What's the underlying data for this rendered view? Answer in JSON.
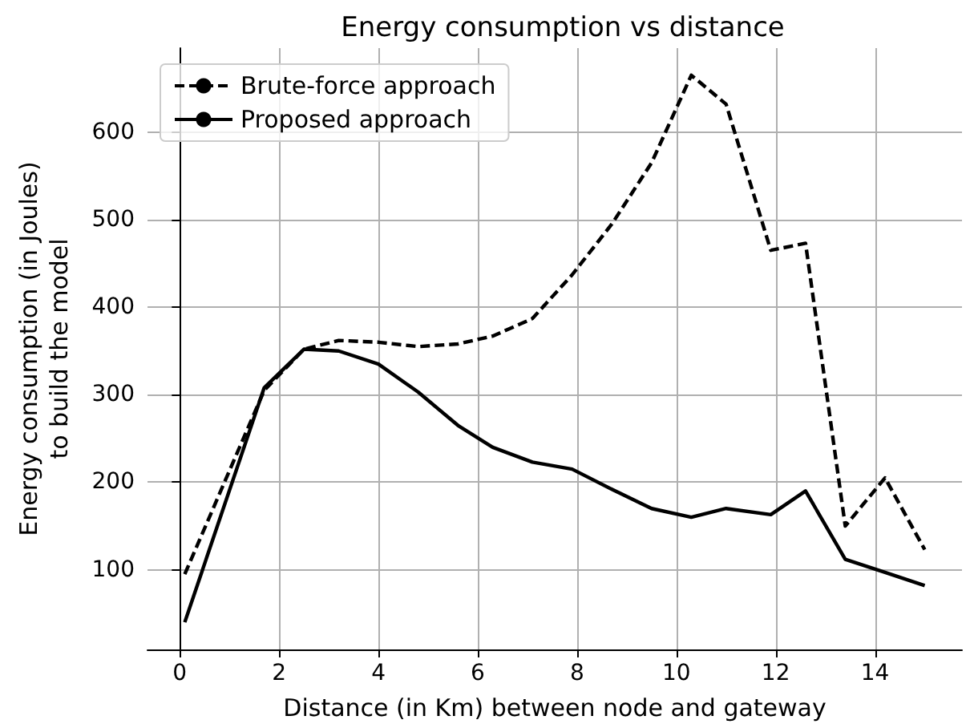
{
  "chart_data": {
    "type": "line",
    "title": "Energy consumption vs distance",
    "xlabel": "Distance (in Km) between node and gateway",
    "ylabel": "Energy consumption (in Joules)\nto build the model",
    "x": [
      0.1,
      1.7,
      2.5,
      3.2,
      4.0,
      4.8,
      5.6,
      6.3,
      7.1,
      7.9,
      8.7,
      9.5,
      10.3,
      11.0,
      11.9,
      12.6,
      13.4,
      14.2,
      15.0
    ],
    "series": [
      {
        "name": "Brute-force approach",
        "color": "#000000",
        "line_style": "dashed",
        "values": [
          95,
          305,
          352,
          362,
          360,
          355,
          358,
          367,
          387,
          437,
          495,
          565,
          665,
          632,
          465,
          473,
          150,
          205,
          123
        ]
      },
      {
        "name": "Proposed approach",
        "color": "#000000",
        "line_style": "solid",
        "values": [
          40,
          308,
          352,
          350,
          335,
          303,
          265,
          240,
          223,
          215,
          192,
          170,
          160,
          170,
          163,
          190,
          112,
          97,
          82
        ]
      }
    ],
    "xlim": [
      -0.65,
      15.75
    ],
    "xticks": [
      0,
      2,
      4,
      6,
      8,
      10,
      12,
      14
    ],
    "ylim": [
      9,
      696
    ],
    "yticks": [
      100,
      200,
      300,
      400,
      500,
      600
    ],
    "grid": true,
    "legend": "top left",
    "marker": "none"
  }
}
